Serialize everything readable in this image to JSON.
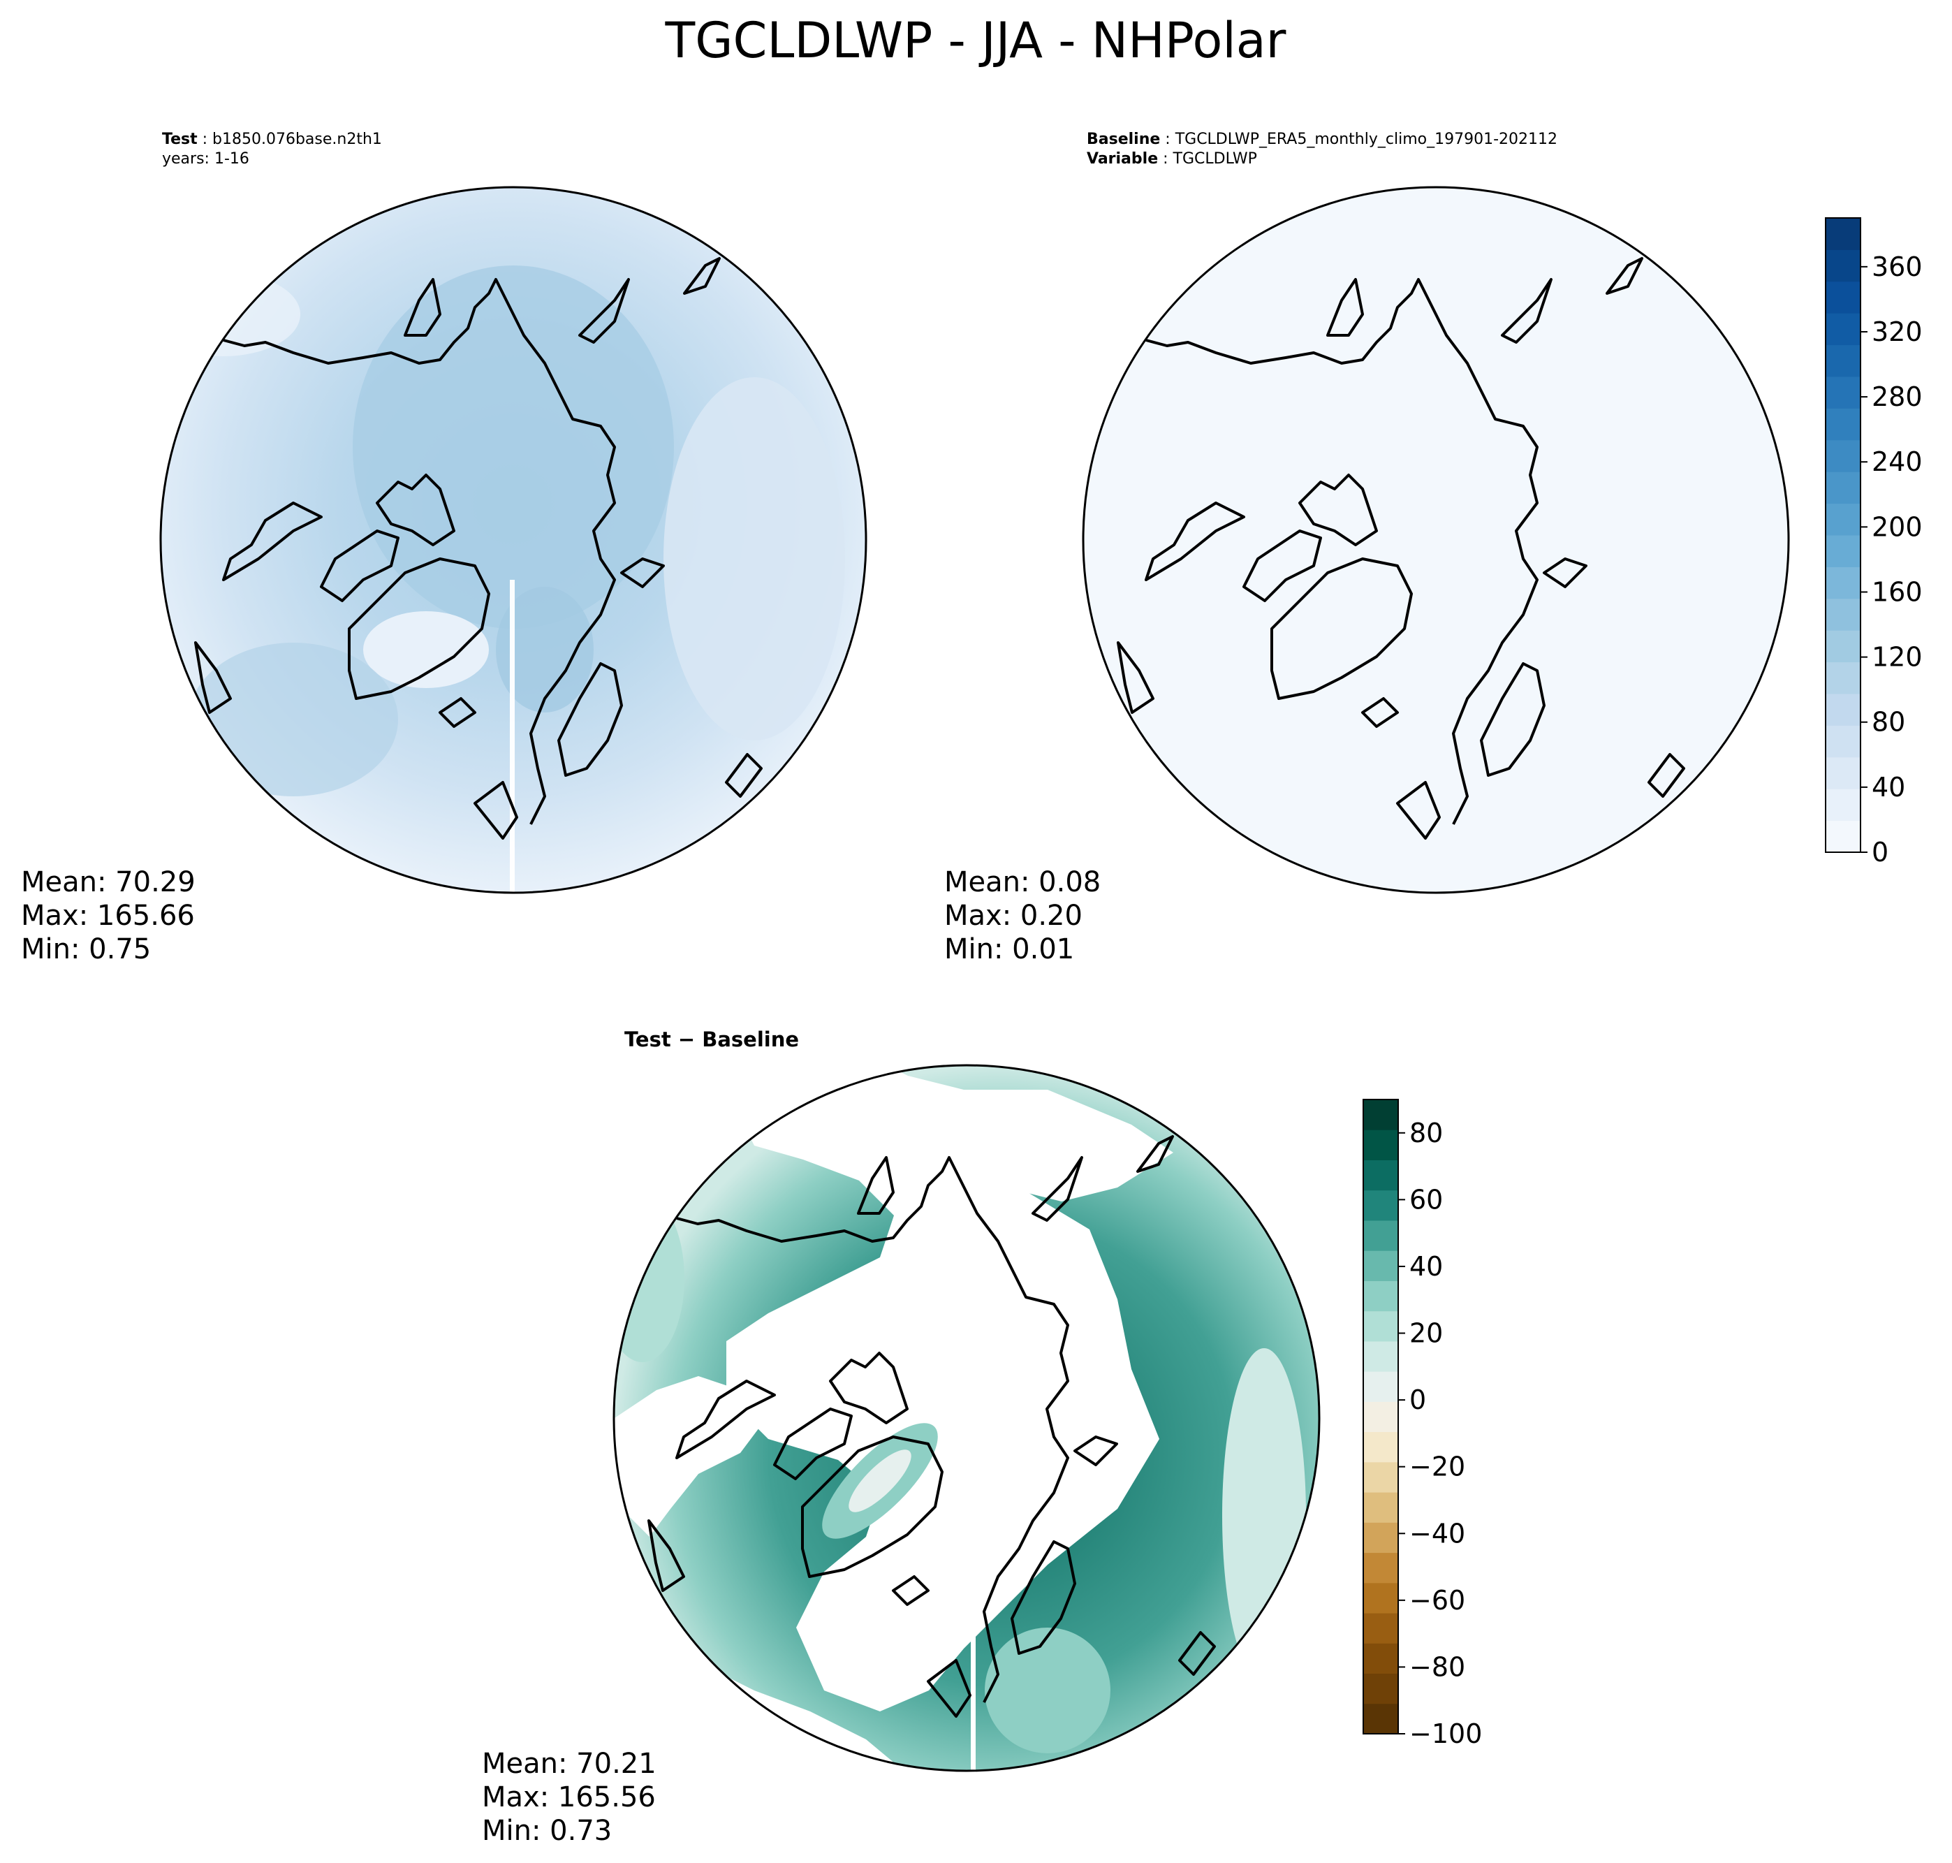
{
  "title": "TGCLDLWP - JJA - NHPolar",
  "panels": {
    "test": {
      "label_bold": "Test",
      "label_value": "b1850.076base.n2th1",
      "line2": "years: 1-16",
      "mean": "Mean: 70.29",
      "max": "Max: 165.66",
      "min": "Min:  0.75"
    },
    "baseline": {
      "label_bold": "Baseline",
      "label_value": "TGCLDLWP_ERA5_monthly_climo_197901-202112",
      "var_bold": "Variable",
      "var_value": "TGCLDLWP",
      "mean": "Mean:  0.08",
      "max": "Max:  0.20",
      "min": "Min:  0.01"
    },
    "diff": {
      "label": "Test − Baseline",
      "mean": "Mean: 70.21",
      "max": "Max: 165.56",
      "min": "Min:  0.73"
    }
  },
  "colorbars": {
    "blues": {
      "range": [
        0,
        390
      ],
      "ticks": [
        {
          "v": 0,
          "label": "0"
        },
        {
          "v": 40,
          "label": "40"
        },
        {
          "v": 80,
          "label": "80"
        },
        {
          "v": 120,
          "label": "120"
        },
        {
          "v": 160,
          "label": "160"
        },
        {
          "v": 200,
          "label": "200"
        },
        {
          "v": 240,
          "label": "240"
        },
        {
          "v": 280,
          "label": "280"
        },
        {
          "v": 320,
          "label": "320"
        },
        {
          "v": 360,
          "label": "360"
        }
      ],
      "colors": [
        "#f3f8fd",
        "#e8f1fa",
        "#dce9f6",
        "#cfe1f2",
        "#c2d9ee",
        "#b3d3e8",
        "#a1cbe2",
        "#8fc1de",
        "#7cb7da",
        "#68acd5",
        "#58a1cf",
        "#4a96c9",
        "#3d8bc3",
        "#3080bd",
        "#2574b6",
        "#1a68ad",
        "#115ca5",
        "#0b509b",
        "#08468a",
        "#083c79"
      ]
    },
    "brbg": {
      "range": [
        -100,
        90
      ],
      "ticks": [
        {
          "v": 80,
          "label": "80"
        },
        {
          "v": 60,
          "label": "60"
        },
        {
          "v": 40,
          "label": "40"
        },
        {
          "v": 20,
          "label": "20"
        },
        {
          "v": 0,
          "label": "0"
        },
        {
          "v": -20,
          "label": "−20"
        },
        {
          "v": -40,
          "label": "−40"
        },
        {
          "v": -60,
          "label": "−60"
        },
        {
          "v": -80,
          "label": "−80"
        },
        {
          "v": -100,
          "label": "−100"
        }
      ],
      "colors": [
        "#5a3505",
        "#6f4107",
        "#824d0a",
        "#995e12",
        "#b0731f",
        "#c28836",
        "#d2a45a",
        "#dfbe7e",
        "#ebd6a6",
        "#f4e8ca",
        "#f3efe3",
        "#e6f0ee",
        "#cfeae5",
        "#b0dfd6",
        "#8ecfc4",
        "#68b9ad",
        "#42a094",
        "#20857b",
        "#0c6d62",
        "#015546",
        "#013f33"
      ]
    }
  }
}
